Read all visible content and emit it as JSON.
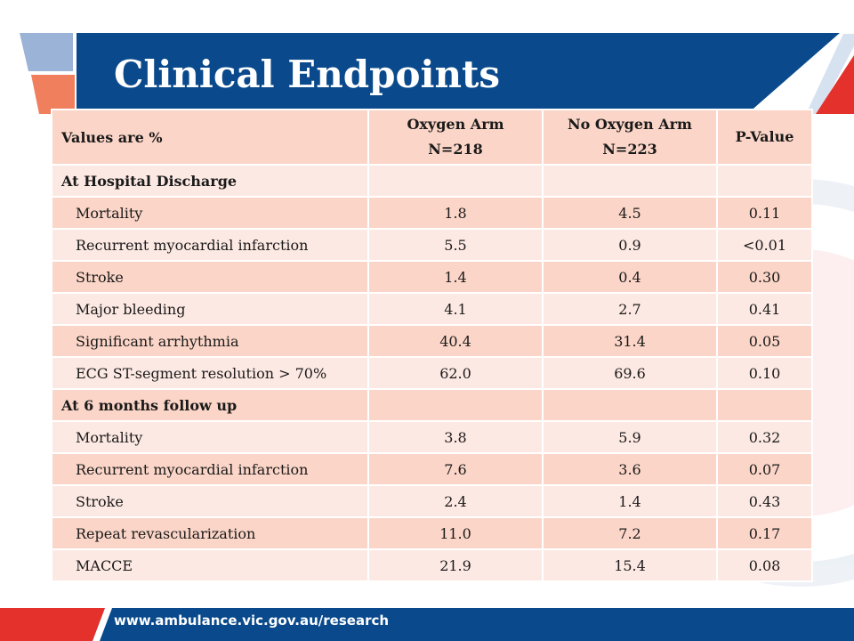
{
  "slide": {
    "title": "Clinical Endpoints",
    "footer_url": "www.ambulance.vic.gov.au/research",
    "colors": {
      "brand_blue": "#0a4a8c",
      "accent_red": "#e5312b",
      "accent_orange": "#f07f5e",
      "row_dark": "#fbd5c7",
      "row_light": "#fde9e3"
    }
  },
  "table": {
    "header": {
      "label": "Values are %",
      "oxygen_arm": "Oxygen Arm",
      "oxygen_n": "N=218",
      "no_oxygen_arm": "No Oxygen Arm",
      "no_oxygen_n": "N=223",
      "p_value": "P-Value"
    },
    "rows": [
      {
        "label": "At Hospital Discharge",
        "oxygen": "",
        "no_oxygen": "",
        "p": ""
      },
      {
        "label": "Mortality",
        "oxygen": "1.8",
        "no_oxygen": "4.5",
        "p": "0.11"
      },
      {
        "label": "Recurrent myocardial infarction",
        "oxygen": "5.5",
        "no_oxygen": "0.9",
        "p": "<0.01"
      },
      {
        "label": "Stroke",
        "oxygen": "1.4",
        "no_oxygen": "0.4",
        "p": "0.30"
      },
      {
        "label": "Major bleeding",
        "oxygen": "4.1",
        "no_oxygen": "2.7",
        "p": "0.41"
      },
      {
        "label": "Significant arrhythmia",
        "oxygen": "40.4",
        "no_oxygen": "31.4",
        "p": "0.05"
      },
      {
        "label": "ECG ST-segment resolution > 70%",
        "oxygen": "62.0",
        "no_oxygen": "69.6",
        "p": "0.10"
      },
      {
        "label": "At 6 months follow up",
        "oxygen": "",
        "no_oxygen": "",
        "p": ""
      },
      {
        "label": "Mortality",
        "oxygen": "3.8",
        "no_oxygen": "5.9",
        "p": "0.32"
      },
      {
        "label": "Recurrent myocardial infarction",
        "oxygen": "7.6",
        "no_oxygen": "3.6",
        "p": "0.07"
      },
      {
        "label": "Stroke",
        "oxygen": "2.4",
        "no_oxygen": "1.4",
        "p": "0.43"
      },
      {
        "label": "Repeat revascularization",
        "oxygen": "11.0",
        "no_oxygen": "7.2",
        "p": "0.17"
      },
      {
        "label": "MACCE",
        "oxygen": "21.9",
        "no_oxygen": "15.4",
        "p": "0.08"
      }
    ]
  }
}
